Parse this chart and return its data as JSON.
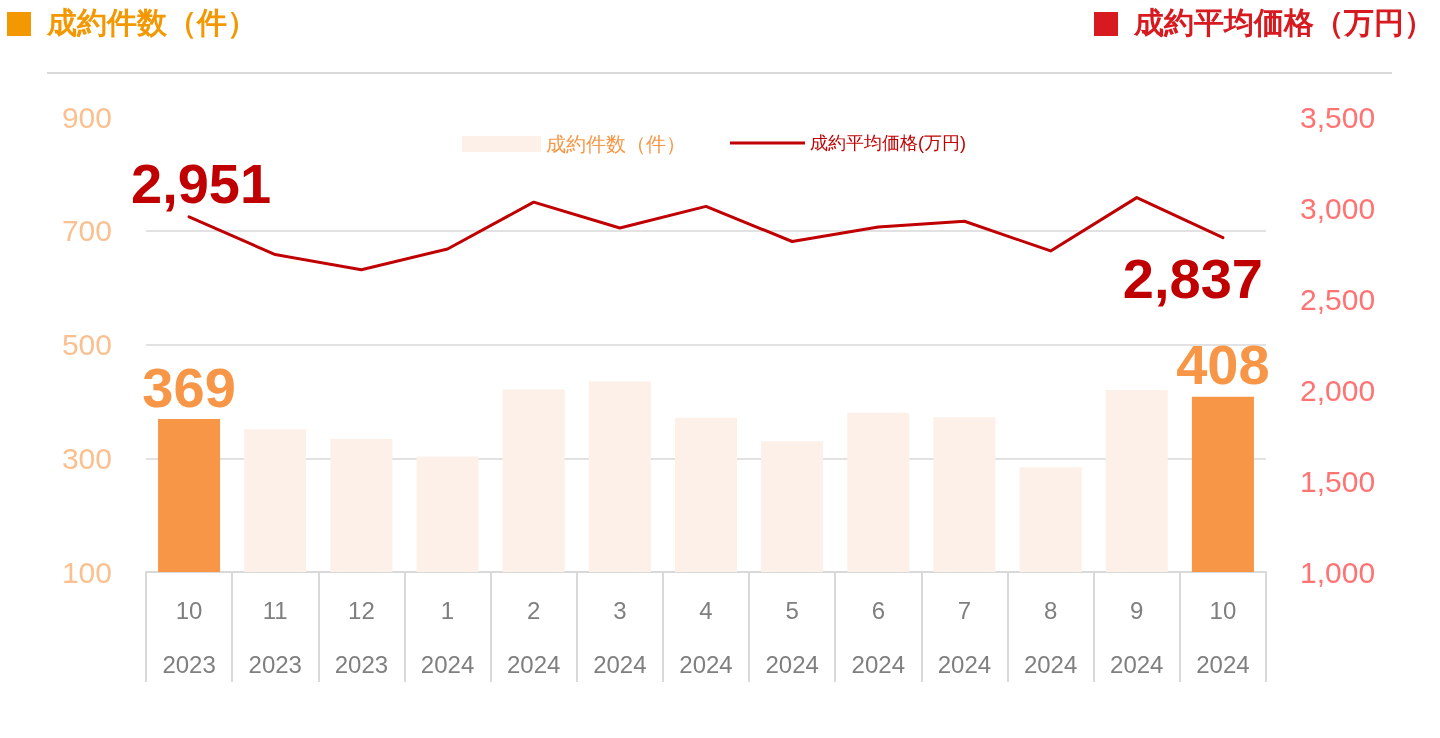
{
  "chart_data": {
    "type": "bar",
    "ylabel": "成約件数（件）",
    "y2label": "成約平均価格（万円）",
    "categories": [
      "10\n2023",
      "11\n2023",
      "12\n2023",
      "1\n2024",
      "2\n2024",
      "3\n2024",
      "4\n2024",
      "5\n2024",
      "6\n2024",
      "7\n2024",
      "8\n2024",
      "9\n2024",
      "10\n2024"
    ],
    "series": [
      {
        "name": "成約件数（件）",
        "color": "#fcf0e8",
        "colors": [
          "#f79646",
          "#fcf0e8",
          "#fcf0e8",
          "#fcf0e8",
          "#fcf0e8",
          "#fcf0e8",
          "#fcf0e8",
          "#fcf0e8",
          "#fcf0e8",
          "#fcf0e8",
          "#fcf0e8",
          "#fcf0e8",
          "#f79646"
        ],
        "values": [
          369,
          351,
          334,
          303,
          421,
          435,
          371,
          330,
          380,
          372,
          284,
          420,
          408
        ],
        "value_labels": [
          "369",
          null,
          null,
          null,
          null,
          null,
          null,
          null,
          null,
          null,
          null,
          null,
          "408"
        ]
      },
      {
        "name": "成約平均価格(万円)",
        "type": "line",
        "axis": "y2",
        "color": "#c00000",
        "values": [
          2951,
          2744,
          2661,
          2775,
          3032,
          2890,
          3009,
          2816,
          2896,
          2927,
          2764,
          3057,
          2837
        ],
        "value_labels": [
          "2,951",
          null,
          null,
          null,
          null,
          null,
          null,
          null,
          null,
          null,
          null,
          null,
          "2,837"
        ]
      }
    ],
    "ylim": [
      100,
      900
    ],
    "yticks": [
      100,
      300,
      500,
      700,
      900
    ],
    "y2lim": [
      1000,
      3500
    ],
    "y2ticks": [
      {
        "value": 1000,
        "label": "1,000"
      },
      {
        "value": 1500,
        "label": "1,500"
      },
      {
        "value": 2000,
        "label": "2,000"
      },
      {
        "value": 2500,
        "label": "2,500"
      },
      {
        "value": 3000,
        "label": "3,000"
      },
      {
        "value": 3500,
        "label": "3,500"
      }
    ],
    "grid": "y",
    "legend": "top",
    "marker": "none",
    "line_style": "solid"
  }
}
